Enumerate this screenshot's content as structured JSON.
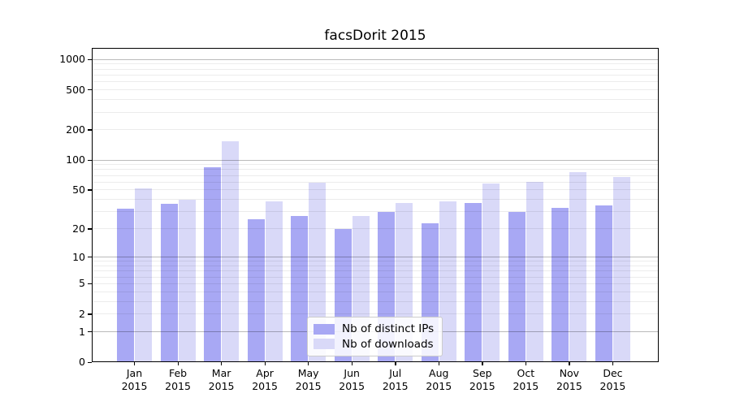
{
  "chart_data": {
    "type": "bar",
    "title": "facsDorit 2015",
    "categories": [
      "Jan",
      "Feb",
      "Mar",
      "Apr",
      "May",
      "Jun",
      "Jul",
      "Aug",
      "Sep",
      "Oct",
      "Nov",
      "Dec"
    ],
    "year_label": "2015",
    "series": [
      {
        "name": "Nb of distinct IPs",
        "color": "#a8a8f4",
        "values": [
          32,
          36,
          85,
          25,
          27,
          20,
          30,
          23,
          37,
          30,
          33,
          35
        ]
      },
      {
        "name": "Nb of downloads",
        "color": "#d9d9f8",
        "values": [
          52,
          40,
          155,
          38,
          59,
          27,
          37,
          38,
          58,
          60,
          76,
          68
        ]
      }
    ],
    "yscale": "log1p",
    "ylim": [
      0,
      1300
    ],
    "y_tick_values": [
      0,
      1,
      2,
      5,
      10,
      20,
      50,
      100,
      200,
      500,
      1000
    ],
    "major_grid_values": [
      1,
      10,
      100,
      1000
    ],
    "grid": true,
    "legend_position": "lower center"
  },
  "colors": {
    "bar_distinct_ips": "#a8a8f4",
    "bar_downloads": "#d9d9f8",
    "spine": "#000000",
    "legend_border": "#cccccc"
  }
}
